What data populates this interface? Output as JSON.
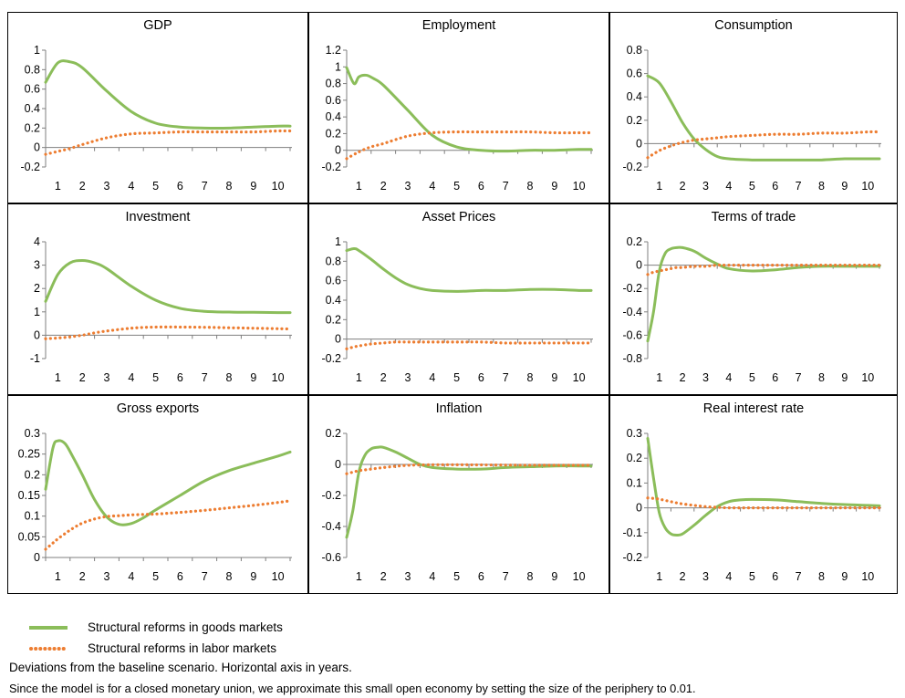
{
  "colors": {
    "goods": "#8bbd5a",
    "labor": "#ed7d31",
    "axis": "#7f7f7f",
    "frame": "#000000"
  },
  "legend": [
    {
      "label": "Structural reforms in goods markets",
      "color": "#8bbd5a",
      "style": "solid"
    },
    {
      "label": "Structural reforms in labor markets",
      "color": "#ed7d31",
      "style": "dotted"
    }
  ],
  "notes": {
    "line1": "Deviations from the baseline scenario. Horizontal axis in years.",
    "line2": "Since the model is for a closed monetary union, we approximate this small open economy by setting the size of the periphery to 0.01."
  },
  "chart_data": [
    {
      "type": "line",
      "title": "GDP",
      "x": [
        0.5,
        1,
        1.5,
        2,
        3,
        4,
        5,
        6,
        7,
        8,
        9,
        10,
        10.5
      ],
      "xticks": [
        1,
        2,
        3,
        4,
        5,
        6,
        7,
        8,
        9,
        10
      ],
      "ylim": [
        -0.2,
        1
      ],
      "yticks": [
        -0.2,
        0,
        0.2,
        0.4,
        0.6,
        0.8,
        1
      ],
      "ytick_labels": [
        "-0.2",
        "0",
        "0.2",
        "0.4",
        "0.6",
        "0.8",
        "1"
      ],
      "series": [
        {
          "name": "Structural reforms in goods markets",
          "values": [
            0.67,
            0.87,
            0.88,
            0.82,
            0.58,
            0.37,
            0.25,
            0.21,
            0.2,
            0.2,
            0.21,
            0.22,
            0.22
          ]
        },
        {
          "name": "Structural reforms in labor markets",
          "values": [
            -0.07,
            -0.04,
            -0.01,
            0.03,
            0.1,
            0.14,
            0.15,
            0.16,
            0.16,
            0.16,
            0.16,
            0.17,
            0.17
          ]
        }
      ]
    },
    {
      "type": "line",
      "title": "Employment",
      "x": [
        0.5,
        0.8,
        1,
        1.3,
        1.6,
        2,
        3,
        4,
        5,
        6,
        7,
        8,
        9,
        10,
        10.5
      ],
      "xticks": [
        1,
        2,
        3,
        4,
        5,
        6,
        7,
        8,
        9,
        10
      ],
      "ylim": [
        -0.2,
        1.2
      ],
      "yticks": [
        -0.2,
        0,
        0.2,
        0.4,
        0.6,
        0.8,
        1,
        1.2
      ],
      "ytick_labels": [
        "-0.2",
        "0",
        "0.2",
        "0.4",
        "0.6",
        "0.8",
        "1",
        "1.2"
      ],
      "series": [
        {
          "name": "Structural reforms in goods markets",
          "values": [
            0.99,
            0.8,
            0.88,
            0.9,
            0.86,
            0.78,
            0.48,
            0.18,
            0.04,
            0.0,
            -0.01,
            0.0,
            0.0,
            0.01,
            0.01
          ]
        },
        {
          "name": "Structural reforms in labor markets",
          "values": [
            -0.1,
            -0.05,
            -0.02,
            0.02,
            0.05,
            0.08,
            0.17,
            0.21,
            0.22,
            0.22,
            0.22,
            0.22,
            0.21,
            0.21,
            0.21
          ]
        }
      ]
    },
    {
      "type": "line",
      "title": "Consumption",
      "x": [
        0.5,
        1,
        1.5,
        2,
        2.5,
        3,
        3.5,
        4,
        5,
        6,
        7,
        8,
        9,
        10,
        10.5
      ],
      "xticks": [
        1,
        2,
        3,
        4,
        5,
        6,
        7,
        8,
        9,
        10
      ],
      "ylim": [
        -0.2,
        0.8
      ],
      "yticks": [
        -0.2,
        0,
        0.2,
        0.4,
        0.6,
        0.8
      ],
      "ytick_labels": [
        "-0.2",
        "0",
        "0.2",
        "0.4",
        "0.6",
        "0.8"
      ],
      "series": [
        {
          "name": "Structural reforms in goods markets",
          "values": [
            0.58,
            0.52,
            0.36,
            0.18,
            0.04,
            -0.05,
            -0.11,
            -0.13,
            -0.14,
            -0.14,
            -0.14,
            -0.14,
            -0.13,
            -0.13,
            -0.13
          ]
        },
        {
          "name": "Structural reforms in labor markets",
          "values": [
            -0.12,
            -0.06,
            -0.02,
            0.01,
            0.03,
            0.04,
            0.05,
            0.06,
            0.07,
            0.08,
            0.08,
            0.09,
            0.09,
            0.1,
            0.1
          ]
        }
      ]
    },
    {
      "type": "line",
      "title": "Investment",
      "x": [
        0.5,
        1,
        1.5,
        2,
        2.5,
        3,
        4,
        5,
        6,
        7,
        8,
        9,
        10,
        10.5
      ],
      "xticks": [
        1,
        2,
        3,
        4,
        5,
        6,
        7,
        8,
        9,
        10
      ],
      "ylim": [
        -1,
        4
      ],
      "yticks": [
        -1,
        0,
        1,
        2,
        3,
        4
      ],
      "ytick_labels": [
        "-1",
        "0",
        "1",
        "2",
        "3",
        "4"
      ],
      "series": [
        {
          "name": "Structural reforms in goods markets",
          "values": [
            1.45,
            2.6,
            3.1,
            3.2,
            3.1,
            2.85,
            2.1,
            1.5,
            1.15,
            1.02,
            0.99,
            0.98,
            0.97,
            0.97
          ]
        },
        {
          "name": "Structural reforms in labor markets",
          "values": [
            -0.15,
            -0.12,
            -0.07,
            0.0,
            0.1,
            0.18,
            0.3,
            0.35,
            0.35,
            0.34,
            0.32,
            0.3,
            0.28,
            0.27
          ]
        }
      ]
    },
    {
      "type": "line",
      "title": "Asset Prices",
      "x": [
        0.5,
        0.8,
        1,
        1.5,
        2,
        2.5,
        3,
        3.5,
        4,
        5,
        6,
        7,
        8,
        9,
        10,
        10.5
      ],
      "xticks": [
        1,
        2,
        3,
        4,
        5,
        6,
        7,
        8,
        9,
        10
      ],
      "ylim": [
        -0.2,
        1
      ],
      "yticks": [
        -0.2,
        0,
        0.2,
        0.4,
        0.6,
        0.8,
        1
      ],
      "ytick_labels": [
        "-0.2",
        "0",
        "0.2",
        "0.4",
        "0.6",
        "0.8",
        "1"
      ],
      "series": [
        {
          "name": "Structural reforms in goods markets",
          "values": [
            0.91,
            0.93,
            0.91,
            0.82,
            0.72,
            0.63,
            0.56,
            0.52,
            0.5,
            0.49,
            0.5,
            0.5,
            0.51,
            0.51,
            0.5,
            0.5
          ]
        },
        {
          "name": "Structural reforms in labor markets",
          "values": [
            -0.1,
            -0.08,
            -0.07,
            -0.05,
            -0.04,
            -0.03,
            -0.03,
            -0.03,
            -0.03,
            -0.03,
            -0.03,
            -0.04,
            -0.04,
            -0.04,
            -0.04,
            -0.04
          ]
        }
      ]
    },
    {
      "type": "line",
      "title": "Terms of trade",
      "x": [
        0.5,
        0.75,
        1,
        1.25,
        1.5,
        1.75,
        2,
        2.5,
        3,
        3.5,
        4,
        5,
        6,
        7,
        8,
        9,
        10,
        10.5
      ],
      "xticks": [
        1,
        2,
        3,
        4,
        5,
        6,
        7,
        8,
        9,
        10
      ],
      "ylim": [
        -0.8,
        0.2
      ],
      "yticks": [
        -0.8,
        -0.6,
        -0.4,
        -0.2,
        0,
        0.2
      ],
      "ytick_labels": [
        "-0.8",
        "-0.6",
        "-0.4",
        "-0.2",
        "0",
        "0.2"
      ],
      "series": [
        {
          "name": "Structural reforms in goods markets",
          "values": [
            -0.65,
            -0.4,
            -0.05,
            0.1,
            0.14,
            0.15,
            0.15,
            0.12,
            0.06,
            0.01,
            -0.03,
            -0.05,
            -0.04,
            -0.02,
            -0.01,
            -0.01,
            -0.01,
            -0.01
          ]
        },
        {
          "name": "Structural reforms in labor markets",
          "values": [
            -0.08,
            -0.06,
            -0.05,
            -0.04,
            -0.03,
            -0.02,
            -0.02,
            -0.01,
            -0.01,
            0.0,
            0.0,
            0.0,
            0.0,
            0.0,
            0.0,
            0.0,
            0.0,
            0.0
          ]
        }
      ]
    },
    {
      "type": "line",
      "title": "Gross exports",
      "x": [
        0.5,
        0.8,
        1,
        1.3,
        1.6,
        2,
        2.5,
        3,
        3.5,
        4,
        4.5,
        5,
        6,
        7,
        8,
        9,
        10,
        10.5
      ],
      "xticks": [
        1,
        2,
        3,
        4,
        5,
        6,
        7,
        8,
        9,
        10
      ],
      "ylim": [
        0,
        0.3
      ],
      "yticks": [
        0,
        0.05,
        0.1,
        0.15,
        0.2,
        0.25,
        0.3
      ],
      "ytick_labels": [
        "0",
        "0.05",
        "0.1",
        "0.15",
        "0.2",
        "0.25",
        "0.3"
      ],
      "series": [
        {
          "name": "Structural reforms in goods markets",
          "values": [
            0.165,
            0.265,
            0.282,
            0.275,
            0.245,
            0.2,
            0.14,
            0.098,
            0.08,
            0.082,
            0.096,
            0.115,
            0.15,
            0.185,
            0.21,
            0.228,
            0.245,
            0.255
          ]
        },
        {
          "name": "Structural reforms in labor markets",
          "values": [
            0.02,
            0.035,
            0.045,
            0.058,
            0.07,
            0.083,
            0.093,
            0.099,
            0.101,
            0.103,
            0.104,
            0.105,
            0.109,
            0.114,
            0.12,
            0.126,
            0.133,
            0.137
          ]
        }
      ]
    },
    {
      "type": "line",
      "title": "Inflation",
      "x": [
        0.5,
        0.75,
        1,
        1.25,
        1.5,
        1.75,
        2,
        2.5,
        3,
        3.5,
        4,
        5,
        6,
        7,
        8,
        9,
        10,
        10.5
      ],
      "xticks": [
        1,
        2,
        3,
        4,
        5,
        6,
        7,
        8,
        9,
        10
      ],
      "ylim": [
        -0.6,
        0.2
      ],
      "yticks": [
        -0.6,
        -0.4,
        -0.2,
        0,
        0.2
      ],
      "ytick_labels": [
        "-0.6",
        "-0.4",
        "-0.2",
        "0",
        "0.2"
      ],
      "series": [
        {
          "name": "Structural reforms in goods markets",
          "values": [
            -0.47,
            -0.3,
            -0.05,
            0.06,
            0.1,
            0.11,
            0.11,
            0.08,
            0.04,
            0.0,
            -0.02,
            -0.03,
            -0.03,
            -0.02,
            -0.015,
            -0.01,
            -0.01,
            -0.01
          ]
        },
        {
          "name": "Structural reforms in labor markets",
          "values": [
            -0.06,
            -0.05,
            -0.04,
            -0.035,
            -0.03,
            -0.025,
            -0.02,
            -0.012,
            -0.006,
            -0.003,
            -0.002,
            -0.002,
            -0.003,
            -0.004,
            -0.005,
            -0.005,
            -0.005,
            -0.005
          ]
        }
      ]
    },
    {
      "type": "line",
      "title": "Real interest rate",
      "x": [
        0.5,
        0.75,
        1,
        1.25,
        1.5,
        1.75,
        2,
        2.5,
        3,
        3.5,
        4,
        4.5,
        5,
        6,
        7,
        8,
        9,
        10,
        10.5
      ],
      "xticks": [
        1,
        2,
        3,
        4,
        5,
        6,
        7,
        8,
        9,
        10
      ],
      "ylim": [
        -0.2,
        0.3
      ],
      "yticks": [
        -0.2,
        -0.1,
        0,
        0.1,
        0.2,
        0.3
      ],
      "ytick_labels": [
        "-0.2",
        "-0.1",
        "0",
        "0.1",
        "0.2",
        "0.3"
      ],
      "series": [
        {
          "name": "Structural reforms in goods markets",
          "values": [
            0.28,
            0.12,
            -0.02,
            -0.08,
            -0.105,
            -0.11,
            -0.105,
            -0.07,
            -0.03,
            0.005,
            0.025,
            0.032,
            0.034,
            0.032,
            0.025,
            0.018,
            0.013,
            0.01,
            0.008
          ]
        },
        {
          "name": "Structural reforms in labor markets",
          "values": [
            0.04,
            0.038,
            0.035,
            0.03,
            0.025,
            0.02,
            0.016,
            0.01,
            0.005,
            0.002,
            0.0,
            0.0,
            0.0,
            0.0,
            0.0,
            0.0,
            0.0,
            0.0,
            0.0
          ]
        }
      ]
    }
  ]
}
